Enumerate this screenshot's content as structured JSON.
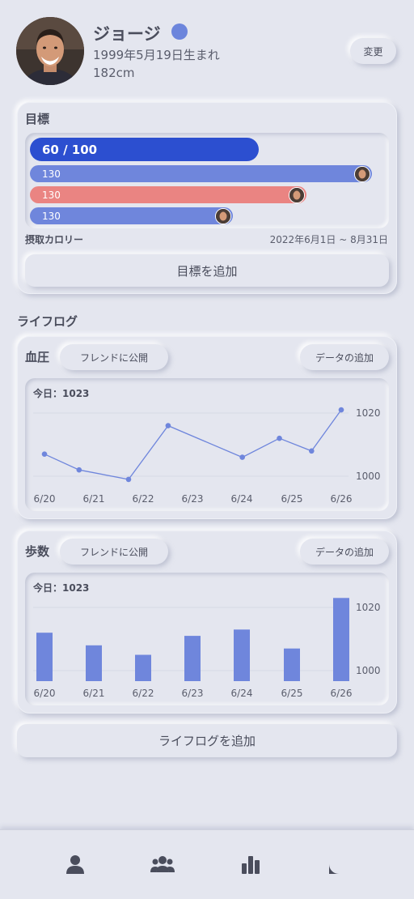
{
  "profile": {
    "name": "ジョージ",
    "birth": "1999年5月19日生まれ",
    "height": "182cm",
    "edit_label": "変更",
    "status_color": "#6c85dc"
  },
  "goals": {
    "title": "目標",
    "main_label": "60 / 100",
    "main_progress": 0.6,
    "bars": [
      {
        "label": "130",
        "progress": 0.94,
        "color": "#6f86dc"
      },
      {
        "label": "130",
        "progress": 0.76,
        "color": "#ea8482"
      },
      {
        "label": "130",
        "progress": 0.56,
        "color": "#6f86dc"
      }
    ],
    "metric_label": "摂取カロリー",
    "date_range": "2022年6月1日 ~ 8月31日",
    "add_label": "目標を追加"
  },
  "lifelog": {
    "title": "ライフログ",
    "add_label": "ライフログを追加"
  },
  "cards": [
    {
      "title": "血圧",
      "share_label": "フレンドに公開",
      "add_data_label": "データの追加",
      "today": "今日：1023"
    },
    {
      "title": "歩数",
      "share_label": "フレンドに公開",
      "add_data_label": "データの追加",
      "today": "今日：1023"
    }
  ],
  "chart_data": [
    {
      "type": "line",
      "categories": [
        "6/20",
        "6/21",
        "6/22",
        "6/23",
        "6/24",
        "6/25",
        "6/26"
      ],
      "x": [
        "6/20",
        "6/20.7",
        "6/21.7",
        "6/22.5",
        "6/24",
        "6/24.75",
        "6/25.4",
        "6/26"
      ],
      "series": [
        {
          "values": [
            1007,
            1002,
            999,
            1016,
            1006,
            1012,
            1008,
            1021
          ]
        }
      ],
      "ytick_labels": [
        "1000",
        "1020"
      ],
      "ylim": [
        1000,
        1020
      ],
      "color": "#6f86dc",
      "grid": true,
      "xlabel": "",
      "ylabel": ""
    },
    {
      "type": "bar",
      "categories": [
        "6/20",
        "6/21",
        "6/22",
        "6/23",
        "6/24",
        "6/25",
        "6/26"
      ],
      "values": [
        1012,
        1008,
        1005,
        1011,
        1013,
        1007,
        1023
      ],
      "ytick_labels": [
        "1000",
        "1020"
      ],
      "ylim": [
        995,
        1025
      ],
      "color": "#6f86dc",
      "grid": true,
      "xlabel": "",
      "ylabel": ""
    }
  ],
  "nav": {
    "items": [
      {
        "icon": "person-icon"
      },
      {
        "icon": "group-icon"
      },
      {
        "icon": "bar-chart-icon"
      },
      {
        "icon": "chat-icon"
      }
    ]
  }
}
